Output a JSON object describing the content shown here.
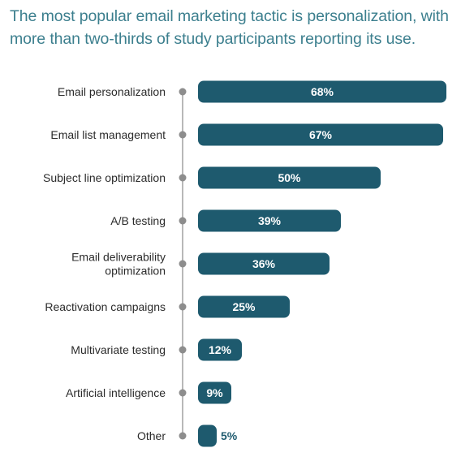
{
  "header": {
    "title_line1": "The most popular email marketing tactic is personalization, with",
    "title_line2": "more than two-thirds of study participants reporting its use."
  },
  "colors": {
    "title": "#3c7f8e",
    "bar": "#1e5a6e",
    "axis": "#b8b8b8",
    "dot": "#8d8d8d",
    "label_text": "#2b2b2b"
  },
  "chart_data": {
    "type": "bar",
    "orientation": "horizontal",
    "title": "The most popular email marketing tactic is personalization, with more than two-thirds of study participants reporting its use.",
    "xlabel": "",
    "ylabel": "",
    "unit": "%",
    "xlim": [
      0,
      68
    ],
    "grid": false,
    "legend": "none",
    "categories": [
      [
        "Email personalization"
      ],
      [
        "Email list management"
      ],
      [
        "Subject line optimization"
      ],
      [
        "A/B testing"
      ],
      [
        "Email deliverability",
        "optimization"
      ],
      [
        "Reactivation campaigns"
      ],
      [
        "Multivariate testing"
      ],
      [
        "Artificial intelligence"
      ],
      [
        "Other"
      ]
    ],
    "values": [
      68,
      67,
      50,
      39,
      36,
      25,
      12,
      9,
      5
    ],
    "value_labels": [
      "68%",
      "67%",
      "50%",
      "39%",
      "36%",
      "25%",
      "12%",
      "9%",
      "5%"
    ]
  }
}
